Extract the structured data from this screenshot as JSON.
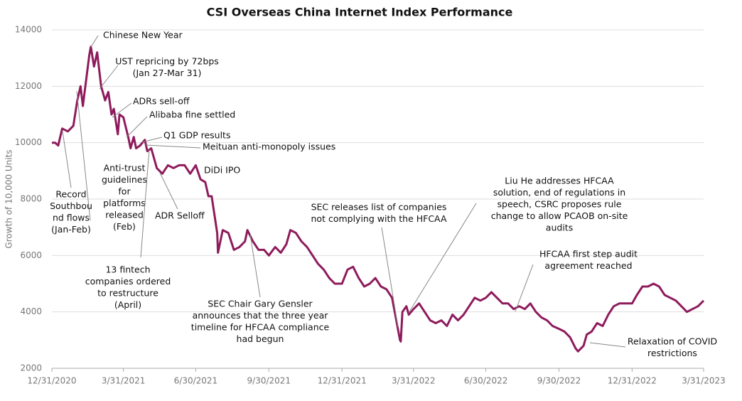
{
  "chart_data": {
    "type": "line",
    "title": "CSI Overseas China Internet Index Performance",
    "y_label": "Growth of 10,000 Units",
    "grid": true,
    "xlim": [
      "12/31/2020",
      "3/31/2023"
    ],
    "xticks": [
      "12/31/2020",
      "3/31/2021",
      "6/30/2021",
      "9/30/2021",
      "12/31/2021",
      "3/31/2022",
      "6/30/2022",
      "9/30/2022",
      "12/31/2022",
      "3/31/2023"
    ],
    "ylim": [
      2000,
      14000
    ],
    "yticks": [
      2000,
      4000,
      6000,
      8000,
      10000,
      12000,
      14000
    ],
    "x": [
      "12/31/2020",
      "1/4/2021",
      "1/8/2021",
      "1/13/2021",
      "1/20/2021",
      "1/27/2021",
      "2/1/2021",
      "2/5/2021",
      "2/8/2021",
      "2/12/2021",
      "2/16/2021",
      "2/18/2021",
      "2/22/2021",
      "2/26/2021",
      "3/3/2021",
      "3/8/2021",
      "3/12/2021",
      "3/16/2021",
      "3/19/2021",
      "3/24/2021",
      "3/26/2021",
      "3/31/2021",
      "4/6/2021",
      "4/9/2021",
      "4/13/2021",
      "4/16/2021",
      "4/21/2021",
      "4/27/2021",
      "4/30/2021",
      "5/5/2021",
      "5/12/2021",
      "5/19/2021",
      "5/26/2021",
      "6/2/2021",
      "6/9/2021",
      "6/16/2021",
      "6/23/2021",
      "6/30/2021",
      "7/6/2021",
      "7/12/2021",
      "7/16/2021",
      "7/20/2021",
      "7/27/2021",
      "7/28/2021",
      "8/3/2021",
      "8/10/2021",
      "8/17/2021",
      "8/24/2021",
      "8/31/2021",
      "9/3/2021",
      "9/10/2021",
      "9/17/2021",
      "9/24/2021",
      "9/30/2021",
      "10/8/2021",
      "10/15/2021",
      "10/22/2021",
      "10/27/2021",
      "11/3/2021",
      "11/10/2021",
      "11/17/2021",
      "11/24/2021",
      "12/1/2021",
      "12/8/2021",
      "12/15/2021",
      "12/22/2021",
      "12/31/2021",
      "1/7/2022",
      "1/14/2022",
      "1/21/2022",
      "1/28/2022",
      "2/4/2022",
      "2/11/2022",
      "2/18/2022",
      "2/25/2022",
      "3/4/2022",
      "3/8/2022",
      "3/14/2022",
      "3/15/2022",
      "3/17/2022",
      "3/22/2022",
      "3/25/2022",
      "3/31/2022",
      "4/7/2022",
      "4/14/2022",
      "4/21/2022",
      "4/28/2022",
      "5/5/2022",
      "5/12/2022",
      "5/19/2022",
      "5/26/2022",
      "6/2/2022",
      "6/9/2022",
      "6/16/2022",
      "6/23/2022",
      "6/30/2022",
      "7/7/2022",
      "7/14/2022",
      "7/21/2022",
      "7/28/2022",
      "8/4/2022",
      "8/11/2022",
      "8/18/2022",
      "8/25/2022",
      "9/1/2022",
      "9/8/2022",
      "9/15/2022",
      "9/22/2022",
      "9/30/2022",
      "10/7/2022",
      "10/14/2022",
      "10/21/2022",
      "10/24/2022",
      "10/31/2022",
      "11/4/2022",
      "11/10/2022",
      "11/17/2022",
      "11/24/2022",
      "12/1/2022",
      "12/8/2022",
      "12/15/2022",
      "12/22/2022",
      "12/31/2022",
      "1/6/2023",
      "1/13/2023",
      "1/20/2023",
      "1/27/2023",
      "2/3/2023",
      "2/10/2023",
      "2/17/2023",
      "2/24/2023",
      "3/3/2023",
      "3/10/2023",
      "3/17/2023",
      "3/24/2023",
      "3/31/2023"
    ],
    "series": [
      {
        "name": "CSI Overseas China Internet Index",
        "color": "#8e1b5c",
        "values": [
          10000,
          10000,
          9900,
          10500,
          10400,
          10600,
          11500,
          12000,
          11300,
          12200,
          13100,
          13400,
          12700,
          13200,
          12000,
          11500,
          11800,
          11000,
          11200,
          10300,
          11000,
          10900,
          10200,
          9800,
          10200,
          9800,
          9900,
          10100,
          9700,
          9800,
          9100,
          8900,
          9200,
          9100,
          9200,
          9200,
          8900,
          9200,
          8700,
          8600,
          8100,
          8100,
          6800,
          6100,
          6900,
          6800,
          6200,
          6300,
          6500,
          6900,
          6500,
          6200,
          6200,
          6000,
          6300,
          6100,
          6400,
          6900,
          6800,
          6500,
          6300,
          6000,
          5700,
          5500,
          5200,
          5000,
          5000,
          5500,
          5600,
          5200,
          4900,
          5000,
          5200,
          4900,
          4800,
          4500,
          3900,
          3000,
          2950,
          4000,
          4200,
          3900,
          4100,
          4300,
          4000,
          3700,
          3600,
          3700,
          3500,
          3900,
          3700,
          3900,
          4200,
          4500,
          4400,
          4500,
          4700,
          4500,
          4300,
          4300,
          4100,
          4200,
          4100,
          4300,
          4000,
          3800,
          3700,
          3500,
          3400,
          3300,
          3100,
          2700,
          2600,
          2800,
          3200,
          3300,
          3600,
          3500,
          3900,
          4200,
          4300,
          4300,
          4300,
          4600,
          4900,
          4900,
          5000,
          4900,
          4600,
          4500,
          4400,
          4200,
          4000,
          4100,
          4200,
          4400
        ]
      }
    ],
    "annotations": [
      [
        "Chinese New Year"
      ],
      [
        "UST repricing by 72bps",
        "(Jan 27-Mar 31)"
      ],
      [
        "ADRs sell-off"
      ],
      [
        "Alibaba fine settled"
      ],
      [
        "Q1 GDP results"
      ],
      [
        "Meituan anti-monopoly issues"
      ],
      [
        "DiDi IPO"
      ],
      [
        "Anti-trust",
        "guidelines",
        "for",
        "platforms",
        "released",
        "(Feb)"
      ],
      [
        "Record",
        "Southbou",
        "nd flows",
        "(Jan-Feb)"
      ],
      [
        "ADR Selloff"
      ],
      [
        "13 fintech",
        "companies ordered",
        "to restructure",
        "(April)"
      ],
      [
        "SEC Chair Gary Gensler",
        "announces that the three year",
        "timeline for HFCAA compliance",
        "had begun"
      ],
      [
        "SEC releases list of companies",
        "not complying with the HFCAA"
      ],
      [
        "Liu He addresses HFCAA",
        "solution, end of regulations in",
        "speech, CSRC proposes rule",
        "change to allow PCAOB on-site",
        "audits"
      ],
      [
        "HFCAA first step audit",
        "agreement reached"
      ],
      [
        "Relaxation of COVID",
        "restrictions"
      ]
    ]
  }
}
